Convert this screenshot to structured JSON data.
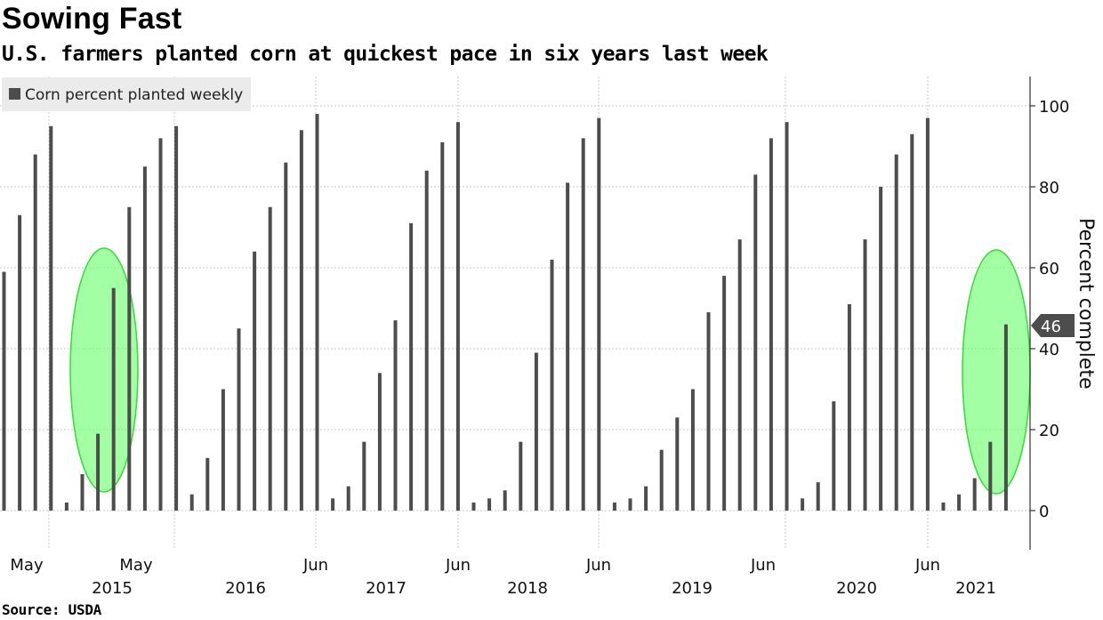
{
  "title": "Sowing Fast",
  "subtitle": "U.S. farmers planted corn at quickest pace in six years last week",
  "source": "Source: USDA",
  "chart_data": {
    "type": "bar",
    "title": "Sowing Fast",
    "subtitle": "U.S. farmers planted corn at quickest pace in six years last week",
    "ylabel": "Percent complete",
    "ylim": [
      -10,
      107
    ],
    "yticks": [
      0,
      20,
      40,
      60,
      80,
      100
    ],
    "grid": true,
    "legend": {
      "position": "top-left",
      "entries": [
        "Corn percent planted weekly"
      ]
    },
    "bar_color": "#4d4d4d",
    "highlight_color": "#66ff66",
    "month_labels": [
      "May",
      "May",
      "Jun",
      "Jun",
      "Jun",
      "Jun",
      "Jun"
    ],
    "year_labels": [
      "2015",
      "2016",
      "2017",
      "2018",
      "2019",
      "2020",
      "2021"
    ],
    "callout": {
      "value": 46,
      "label": "46"
    },
    "series": [
      {
        "name": "Corn percent planted weekly",
        "values": [
          59,
          73,
          88,
          95,
          2,
          9,
          19,
          55,
          75,
          85,
          92,
          95,
          4,
          13,
          30,
          45,
          64,
          75,
          86,
          94,
          98,
          3,
          6,
          17,
          34,
          47,
          71,
          84,
          91,
          96,
          2,
          3,
          5,
          17,
          39,
          62,
          81,
          92,
          97,
          2,
          3,
          6,
          15,
          23,
          30,
          49,
          58,
          67,
          83,
          92,
          96,
          3,
          7,
          27,
          51,
          67,
          80,
          88,
          93,
          97,
          2,
          4,
          8,
          17,
          46
        ]
      }
    ],
    "highlighted_groups": [
      {
        "values": [
          2,
          9,
          19,
          55,
          75
        ]
      },
      {
        "values": [
          2,
          4,
          8,
          17,
          46
        ]
      }
    ]
  }
}
